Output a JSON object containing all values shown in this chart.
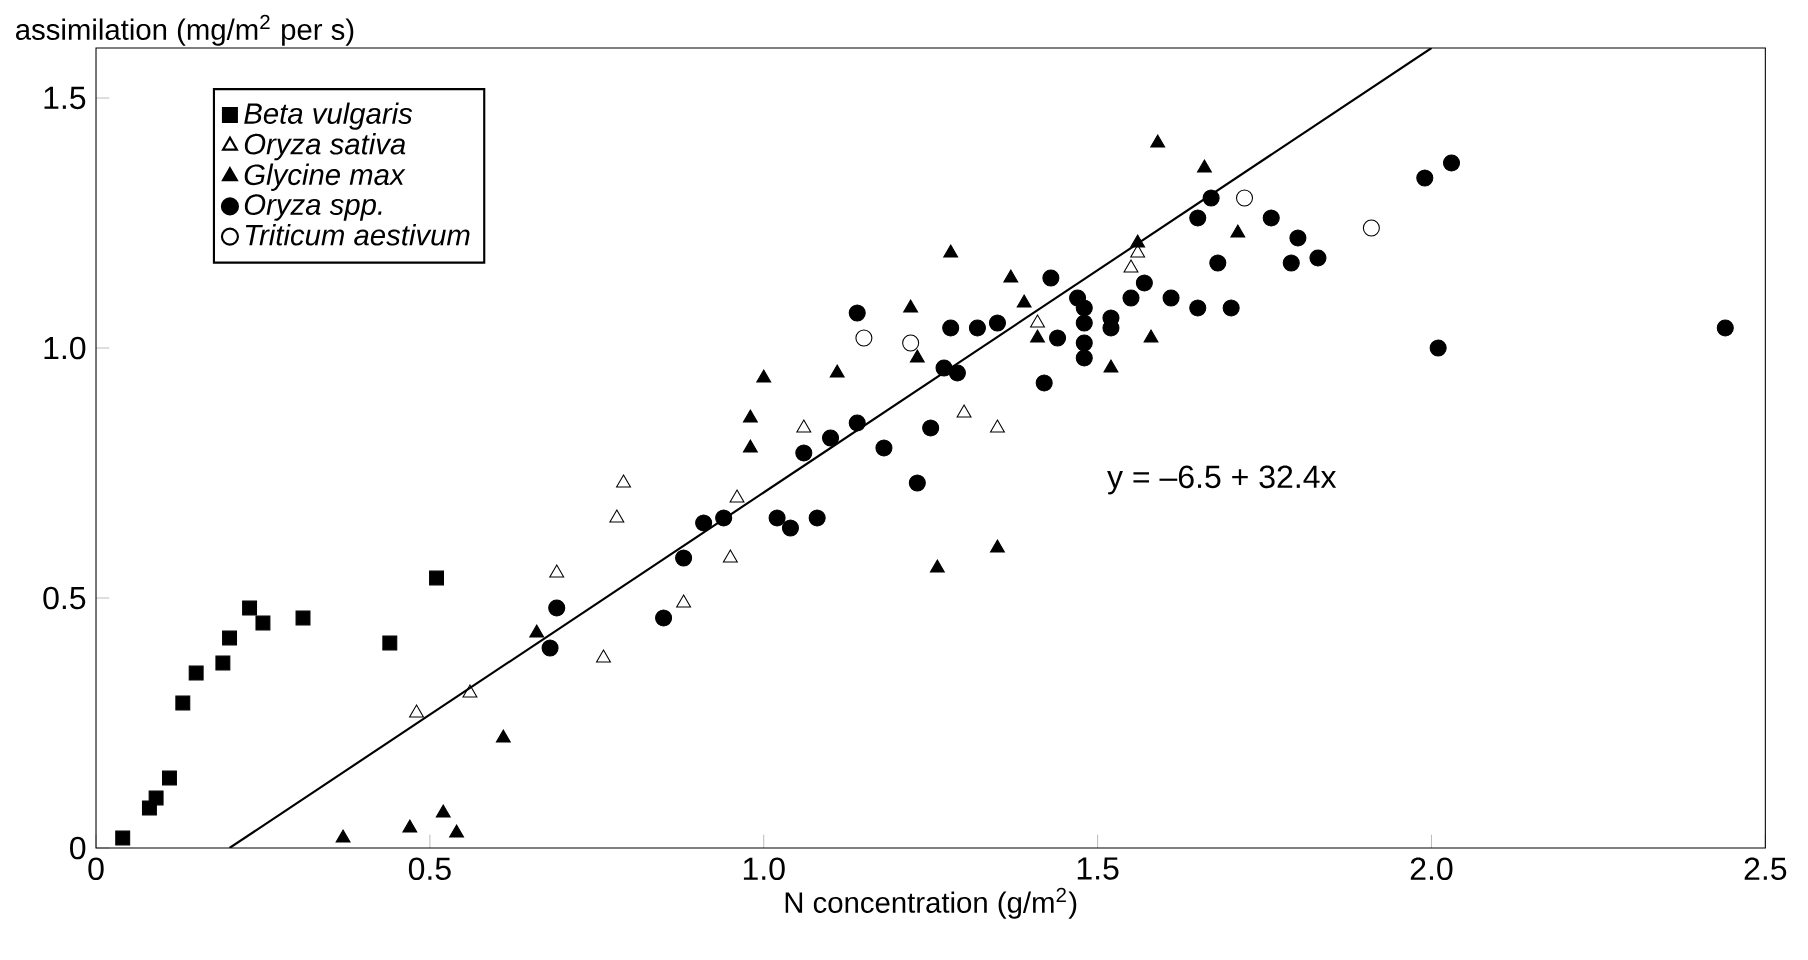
{
  "chart_data": {
    "type": "scatter",
    "ylabel": "assimilation (mg/m$^{2}$ per s)",
    "xlabel": "N concentration (g/m$^{2}$)",
    "xlim": [
      0,
      2.5
    ],
    "ylim": [
      0,
      1.6
    ],
    "xticks": [
      0,
      0.5,
      {
        "value": 1.0,
        "label": "1.0"
      },
      1.5,
      {
        "value": 2.0,
        "label": "2.0"
      },
      2.5
    ],
    "yticks": [
      0,
      0.5,
      {
        "value": 1.0,
        "label": "1.0"
      },
      1.5
    ],
    "legend": "top left",
    "grid": false,
    "annotations": [
      "y = –6.5 + 32.4x"
    ],
    "series": [
      {
        "name": "Beta vulgaris",
        "color": "#000000",
        "marker": "square",
        "x": [
          0.04,
          0.08,
          0.09,
          0.11,
          0.13,
          0.15,
          0.19,
          0.2,
          0.23,
          0.25,
          0.31,
          0.44,
          0.51
        ],
        "values": [
          0.02,
          0.08,
          0.1,
          0.14,
          0.29,
          0.35,
          0.37,
          0.42,
          0.48,
          0.45,
          0.46,
          0.41,
          0.54
        ]
      },
      {
        "name": "Oryza sativa",
        "color": "#000000",
        "marker": "triangle-open",
        "x": [
          0.48,
          0.56,
          0.69,
          0.76,
          0.78,
          0.79,
          0.88,
          0.95,
          0.96,
          1.06,
          1.3,
          1.35,
          1.41,
          1.55,
          1.56
        ],
        "values": [
          0.27,
          0.31,
          0.55,
          0.38,
          0.66,
          0.73,
          0.49,
          0.58,
          0.7,
          0.84,
          0.87,
          0.84,
          1.05,
          1.16,
          1.19
        ]
      },
      {
        "name": "Glycine max",
        "color": "#000000",
        "marker": "triangle",
        "x": [
          0.37,
          0.47,
          0.52,
          0.54,
          0.61,
          0.66,
          0.98,
          0.98,
          1.0,
          1.11,
          1.22,
          1.23,
          1.28,
          1.26,
          1.35,
          1.37,
          1.39,
          1.41,
          1.52,
          1.56,
          1.58,
          1.59,
          1.66,
          1.71
        ],
        "values": [
          0.02,
          0.04,
          0.07,
          0.03,
          0.22,
          0.43,
          0.8,
          0.86,
          0.94,
          0.95,
          1.08,
          0.98,
          1.19,
          0.56,
          0.6,
          1.14,
          1.09,
          1.02,
          0.96,
          1.21,
          1.02,
          1.41,
          1.36,
          1.23
        ]
      },
      {
        "name": "*Oryza* spp.",
        "color": "#000000",
        "marker": "circle",
        "x": [
          0.69,
          0.68,
          0.85,
          0.88,
          0.91,
          0.94,
          1.02,
          1.04,
          1.08,
          1.06,
          1.1,
          1.14,
          1.14,
          1.18,
          1.23,
          1.25,
          1.27,
          1.29,
          1.28,
          1.32,
          1.35,
          1.43,
          1.42,
          1.44,
          1.47,
          1.48,
          1.48,
          1.48,
          1.48,
          1.52,
          1.52,
          1.55,
          1.57,
          1.61,
          1.65,
          1.7,
          1.68,
          1.65,
          1.67,
          1.76,
          1.8,
          1.79,
          1.83,
          1.99,
          2.03,
          2.01,
          2.44
        ],
        "values": [
          0.48,
          0.4,
          0.46,
          0.58,
          0.65,
          0.66,
          0.66,
          0.64,
          0.66,
          0.79,
          0.82,
          0.85,
          1.07,
          0.8,
          0.73,
          0.84,
          0.96,
          0.95,
          1.04,
          1.04,
          1.05,
          1.14,
          0.93,
          1.02,
          1.1,
          1.08,
          1.05,
          1.01,
          0.98,
          1.06,
          1.04,
          1.1,
          1.13,
          1.1,
          1.08,
          1.08,
          1.17,
          1.26,
          1.3,
          1.26,
          1.22,
          1.17,
          1.18,
          1.34,
          1.37,
          1.0,
          1.04
        ]
      },
      {
        "name": "Triticum aestivum",
        "color": "#000000",
        "marker": "circle-open",
        "x": [
          1.15,
          1.22,
          1.72,
          1.91
        ],
        "values": [
          1.02,
          1.01,
          1.3,
          1.24
        ]
      },
      {
        "type": "line",
        "color": "#000000",
        "marker": "none",
        "line_style": "solid",
        "x": [
          0.2,
          2.0
        ],
        "values": [
          0,
          1.6
        ]
      }
    ]
  }
}
